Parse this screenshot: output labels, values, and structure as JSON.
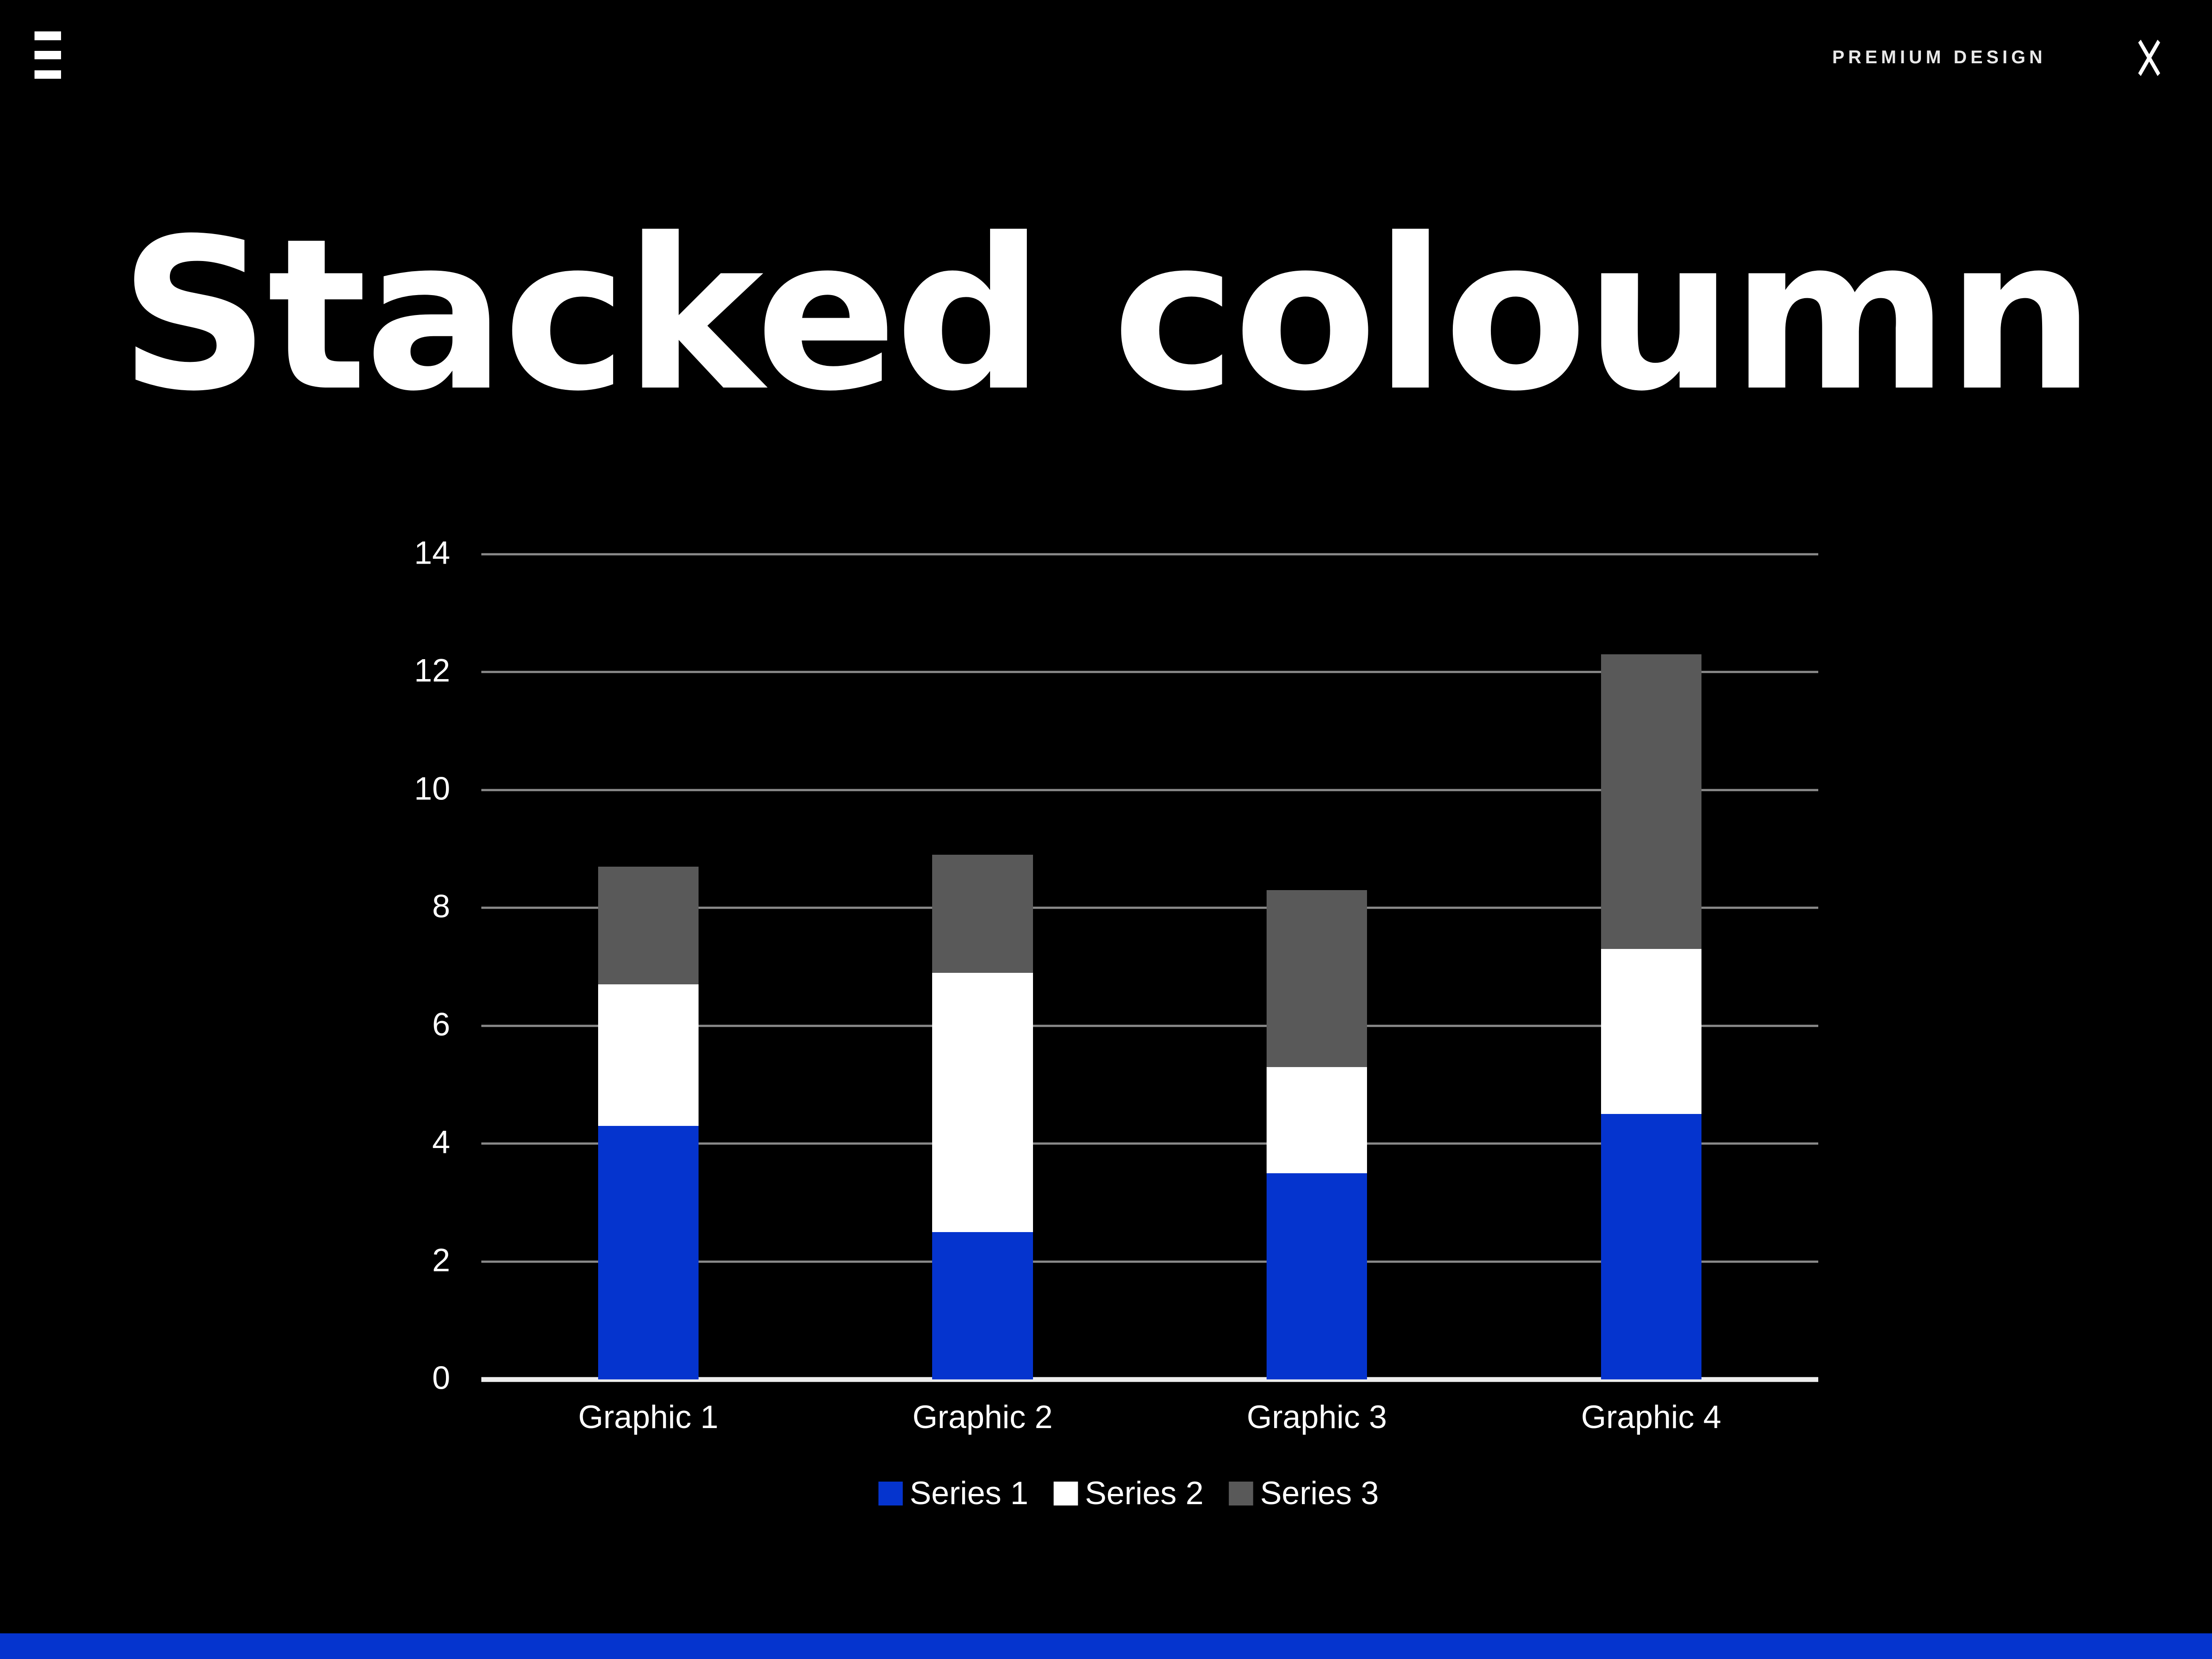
{
  "topbar": {
    "brand_text": "PREMIUM DESIGN"
  },
  "slide": {
    "title": "Stacked coloumn"
  },
  "chart_data": {
    "type": "bar",
    "stacked": true,
    "title": "",
    "categories": [
      "Graphic 1",
      "Graphic 2",
      "Graphic 3",
      "Graphic 4"
    ],
    "series": [
      {
        "name": "Series 1",
        "color": "#0534CE",
        "values": [
          4.3,
          2.5,
          3.5,
          4.5
        ]
      },
      {
        "name": "Series 2",
        "color": "#FFFFFF",
        "values": [
          2.4,
          4.4,
          1.8,
          2.8
        ]
      },
      {
        "name": "Series 3",
        "color": "#595959",
        "values": [
          2.0,
          2.0,
          3.0,
          5.0
        ]
      }
    ],
    "ylim": [
      0,
      14
    ],
    "yticks": [
      0,
      2,
      4,
      6,
      8,
      10,
      12,
      14
    ],
    "grid": true,
    "legend_position": "bottom",
    "gridline_color": "#8A8A8A",
    "axis_line_color": "#EDEDED",
    "text_color": "#FFFFFF"
  },
  "footer": {
    "accent_color": "#0534CE"
  }
}
